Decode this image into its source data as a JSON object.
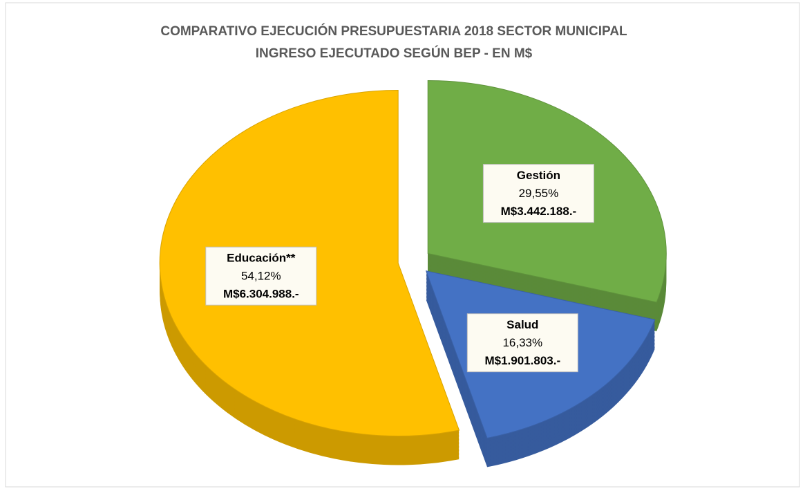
{
  "chart_data": {
    "type": "pie",
    "title": "COMPARATIVO EJECUCIÓN PRESUPUESTARIA 2018 SECTOR MUNICIPAL",
    "subtitle": "INGRESO EJECUTADO SEGÚN BEP - EN M$",
    "categories": [
      "Gestión",
      "Salud",
      "Educación**"
    ],
    "values": [
      29.55,
      16.33,
      54.12
    ],
    "value_labels": [
      "29,55%",
      "16,33%",
      "54,12%"
    ],
    "amount_labels": [
      "M$3.442.188.-",
      "M$1.901.803.-",
      "M$6.304.988.-"
    ],
    "colors": [
      "#70AD47",
      "#4472C4",
      "#FFC000"
    ]
  }
}
